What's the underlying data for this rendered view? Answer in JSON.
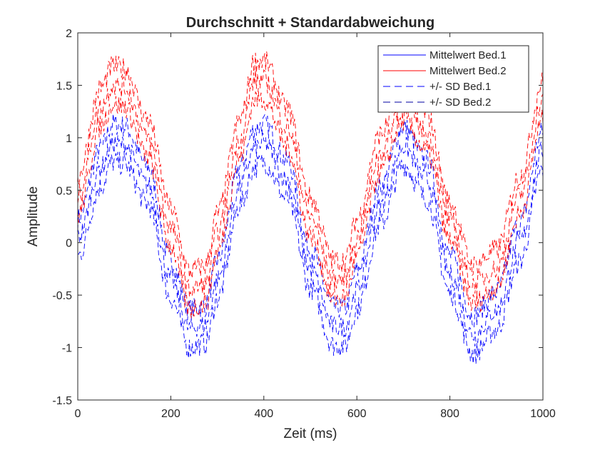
{
  "chart_data": {
    "type": "line",
    "title": "Durchschnitt + Standardabweichung",
    "xlabel": "Zeit (ms)",
    "ylabel": "Amplitude",
    "xlim": [
      0,
      1000
    ],
    "ylim": [
      -1.5,
      2
    ],
    "x_ticks": [
      "0",
      "200",
      "400",
      "600",
      "800",
      "1000"
    ],
    "y_ticks": [
      "-1.5",
      "-1",
      "-0.5",
      "0",
      "0.5",
      "1",
      "1.5",
      "2"
    ],
    "grid": false,
    "legend_position": "top-right",
    "x": [
      0,
      50,
      75,
      100,
      150,
      200,
      240,
      275,
      300,
      350,
      380,
      400,
      450,
      500,
      550,
      575,
      600,
      650,
      700,
      750,
      800,
      850,
      900,
      950,
      1000
    ],
    "series": [
      {
        "name": "Mittelwert Bed.1",
        "style": "solid",
        "color": "#0000ff",
        "values": [
          0.05,
          0.72,
          0.95,
          0.93,
          0.55,
          -0.35,
          -0.82,
          -0.78,
          -0.35,
          0.55,
          0.9,
          0.95,
          0.6,
          -0.25,
          -0.8,
          -0.8,
          -0.45,
          0.35,
          0.92,
          0.6,
          -0.3,
          -0.88,
          -0.65,
          0.0,
          0.88
        ]
      },
      {
        "name": "Mittelwert Bed.2",
        "style": "solid",
        "color": "#ff0000",
        "values": [
          0.45,
          1.3,
          1.5,
          1.48,
          1.0,
          0.15,
          -0.45,
          -0.4,
          0.1,
          1.0,
          1.55,
          1.55,
          1.1,
          0.25,
          -0.35,
          -0.35,
          0.05,
          0.85,
          1.35,
          1.05,
          0.2,
          -0.4,
          -0.25,
          0.45,
          1.35
        ]
      },
      {
        "name": "+/- SD Bed.1",
        "style": "dashed",
        "color": "#0000ff",
        "sd": 0.18
      },
      {
        "name": "+/- SD Bed.2",
        "style": "dashed",
        "color": "#0000a0",
        "sd": 0.18
      }
    ]
  },
  "colors": {
    "axis": "#262626",
    "blue": "#0000ff",
    "red": "#ff0000"
  }
}
